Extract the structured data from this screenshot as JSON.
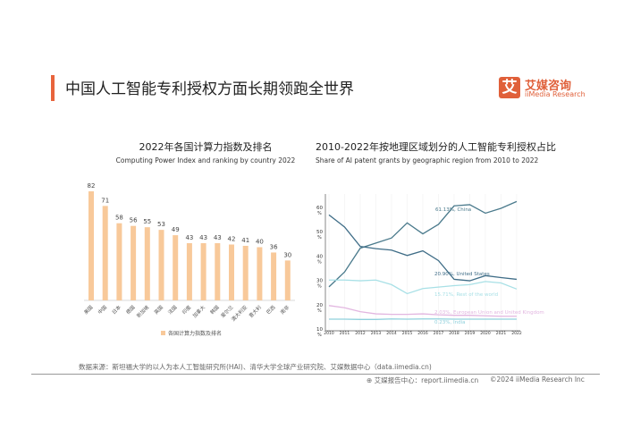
{
  "header": {
    "title": "中国人工智能专利授权方面长期领跑全世界",
    "logo_mark": "艾",
    "logo_cn": "艾媒咨询",
    "logo_en": "iiMedia Research"
  },
  "colors": {
    "accent": "#e8643c",
    "bar": "#f8c99a",
    "china": "#4a7a8c",
    "us": "#3f6d87",
    "rest": "#a8e0e6",
    "eu": "#e2b6e0",
    "india": "#8fd0dc"
  },
  "chart_data": [
    {
      "type": "bar",
      "title": "2022年各国计算力指数及排名",
      "subtitle": "Computing Power Index and ranking by country 2022",
      "categories": [
        "美国",
        "中国",
        "日本",
        "德国",
        "新加坡",
        "英国",
        "法国",
        "印度",
        "加拿大",
        "韩国",
        "爱尔兰",
        "澳大利亚",
        "意大利",
        "巴西",
        "南非"
      ],
      "values": [
        82,
        71,
        58,
        56,
        55,
        53,
        49,
        43,
        43,
        43,
        42,
        41,
        40,
        36,
        30
      ],
      "legend": "各国计算力指数及排名",
      "legend_position": "bottom",
      "grid": false
    },
    {
      "type": "line",
      "title": "2010-2022年按地理区域划分的人工智能专利授权占比",
      "subtitle": "Share of AI patent grants by geographic region from 2010 to 2022",
      "x": [
        2010,
        2011,
        2012,
        2013,
        2014,
        2015,
        2016,
        2017,
        2018,
        2019,
        2020,
        2021,
        2022
      ],
      "yticks": [
        "10 %",
        "20 %",
        "30 %",
        "40 %",
        "50 %",
        "60 %"
      ],
      "ylim": [
        10,
        65
      ],
      "series": [
        {
          "name": "61.13%, China",
          "values": [
            27.7,
            33.8,
            43.6,
            45.7,
            47.8,
            54,
            49.5,
            53.4,
            61,
            61.5,
            58,
            60,
            62.8
          ]
        },
        {
          "name": "20.90%, United States",
          "values": [
            57.3,
            52.3,
            44.3,
            43.4,
            42.8,
            40.6,
            42.5,
            38.5,
            30.8,
            30.2,
            32.3,
            31.5,
            30.8
          ]
        },
        {
          "name": "15.71%, Rest of the world",
          "values": [
            30.5,
            30.5,
            30.2,
            30.5,
            28.6,
            24.9,
            27,
            27.6,
            28.2,
            28.6,
            29.9,
            29.3,
            26.8
          ]
        },
        {
          "name": "2.03%, European Union and United Kingdom",
          "values": [
            20,
            19.1,
            17.5,
            16.6,
            16.4,
            16.4,
            16.6,
            16.2,
            16,
            16,
            15.8,
            15.6,
            15.6
          ]
        },
        {
          "name": "0.23%, India",
          "values": [
            14.4,
            14.4,
            14.3,
            14.3,
            14.5,
            14.4,
            14.5,
            14.5,
            14.4,
            14.4,
            14.4,
            14.4,
            14.4
          ]
        }
      ]
    }
  ],
  "footer": {
    "source": "数据来源：斯坦福大学的以人为本人工智能研究所(HAI)、清华大学全球产业研究院、艾媒数据中心（data.iimedia.cn)",
    "report": "艾媒报告中心：report.iimedia.cn",
    "copyright": "©2024 iiMedia Research Inc"
  }
}
